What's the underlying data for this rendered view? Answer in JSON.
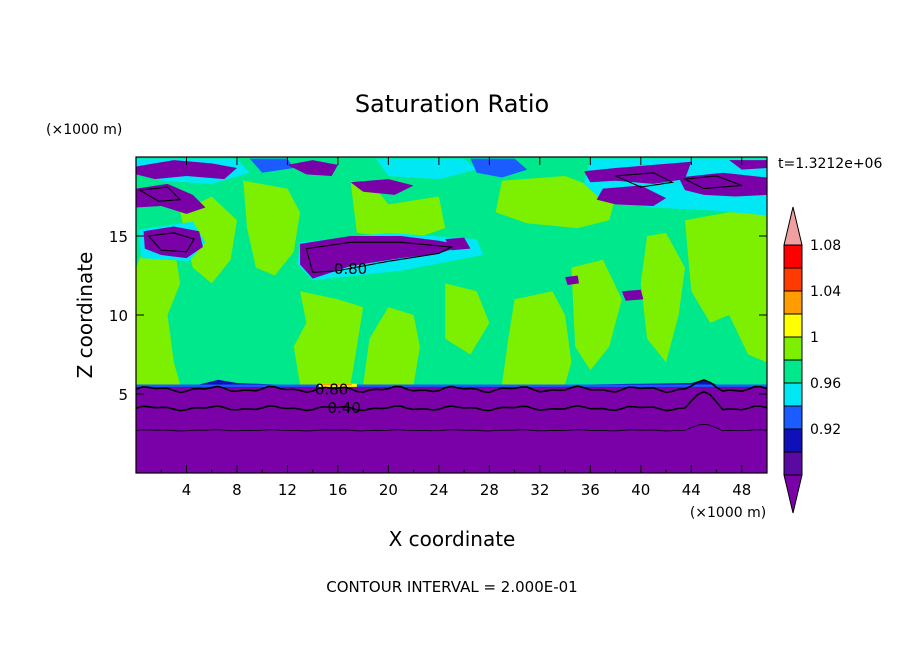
{
  "chart_data": {
    "type": "heatmap",
    "title": "Saturation Ratio",
    "xlabel": "X coordinate",
    "ylabel": "Z coordinate",
    "x_unit": "(×1000 m)",
    "y_unit": "(×1000 m)",
    "time_label": "t=1.3212e+06",
    "footer": "CONTOUR INTERVAL = 2.000E-01",
    "xlim": [
      0,
      50
    ],
    "ylim": [
      0,
      20
    ],
    "x_ticks": [
      4,
      8,
      12,
      16,
      20,
      24,
      28,
      32,
      36,
      40,
      44,
      48
    ],
    "y_ticks": [
      5,
      10,
      15
    ],
    "colorbar": {
      "labels": [
        "0.92",
        "0.96",
        "1",
        "1.04",
        "1.08"
      ],
      "bins": [
        {
          "range": "below 0.90",
          "color": "#7a00a8"
        },
        {
          "range": "0.90-0.92",
          "color": "#5a0aa0"
        },
        {
          "range": "0.92-0.94",
          "color": "#1010b8"
        },
        {
          "range": "0.94-0.96",
          "color": "#1a5cff"
        },
        {
          "range": "0.96-0.98",
          "color": "#00e8f4"
        },
        {
          "range": "0.98-1.00",
          "color": "#00e88c"
        },
        {
          "range": "1.00-1.02",
          "color": "#7cf000"
        },
        {
          "range": "1.02-1.04",
          "color": "#ffff00"
        },
        {
          "range": "1.04-1.06",
          "color": "#ff9d00"
        },
        {
          "range": "1.06-1.08",
          "color": "#ff3a00"
        },
        {
          "range": "1.08-1.10",
          "color": "#ff0000"
        },
        {
          "range": "above 1.10",
          "color": "#f0a0a0"
        }
      ]
    },
    "contour_labels": [
      {
        "text": "0.80",
        "x": 17.0,
        "z": 12.9
      },
      {
        "text": "0.80",
        "x": 15.5,
        "z": 5.3
      },
      {
        "text": "0.40",
        "x": 16.5,
        "z": 4.1
      }
    ],
    "regions": {
      "lower_layer_top_z": 5.5,
      "contour_lines_z": [
        5.3,
        4.1,
        2.7
      ],
      "upper_moist_bands": [
        {
          "x": [
            0,
            6
          ],
          "z": [
            14.5,
            19.5
          ]
        },
        {
          "x": [
            13,
            27
          ],
          "z": [
            12.5,
            14.8
          ]
        },
        {
          "x": [
            35,
            50
          ],
          "z": [
            16.0,
            19.8
          ]
        }
      ]
    }
  }
}
